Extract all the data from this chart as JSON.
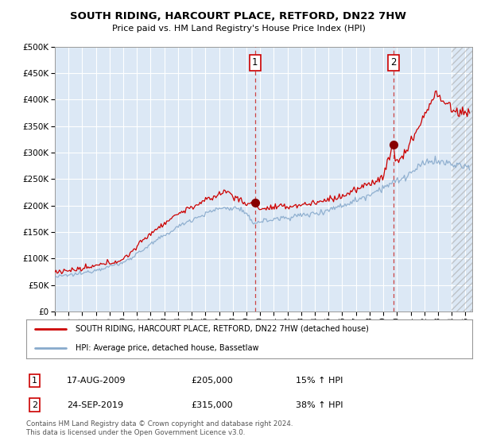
{
  "title": "SOUTH RIDING, HARCOURT PLACE, RETFORD, DN22 7HW",
  "subtitle": "Price paid vs. HM Land Registry's House Price Index (HPI)",
  "ylim": [
    0,
    500000
  ],
  "xlim_start": 1995.0,
  "xlim_end": 2025.5,
  "background_color": "#ffffff",
  "plot_bg_color": "#dce8f5",
  "grid_color": "#ffffff",
  "red_line_color": "#cc0000",
  "blue_line_color": "#88aacc",
  "marker1_date": 2009.62,
  "marker1_price": 205000,
  "marker2_date": 2019.73,
  "marker2_price": 315000,
  "legend_label_red": "SOUTH RIDING, HARCOURT PLACE, RETFORD, DN22 7HW (detached house)",
  "legend_label_blue": "HPI: Average price, detached house, Bassetlaw",
  "table_rows": [
    {
      "num": "1",
      "date": "17-AUG-2009",
      "price": "£205,000",
      "change": "15% ↑ HPI"
    },
    {
      "num": "2",
      "date": "24-SEP-2019",
      "price": "£315,000",
      "change": "38% ↑ HPI"
    }
  ],
  "footer": "Contains HM Land Registry data © Crown copyright and database right 2024.\nThis data is licensed under the Open Government Licence v3.0.",
  "yticks": [
    0,
    50000,
    100000,
    150000,
    200000,
    250000,
    300000,
    350000,
    400000,
    450000,
    500000
  ],
  "hatch_start": 2024.0
}
